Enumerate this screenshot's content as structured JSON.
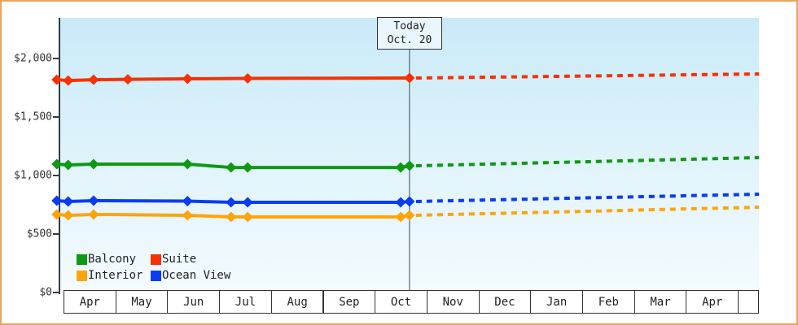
{
  "window": {
    "title": "Cruise price history chart"
  },
  "today_marker": {
    "line1": "Today",
    "line2": "Oct. 20"
  },
  "colors": {
    "frame_border": "#e8a55c",
    "axis": "#333b45",
    "today_line": "#3c4750",
    "plot_bg_top": "#c9eaf8",
    "plot_bg_bottom": "#f3fbfe",
    "balcony": "#0d9a12",
    "suite": "#f93000",
    "interior": "#ffa408",
    "ocean_view": "#0a3bf5"
  },
  "chart_data": {
    "type": "line",
    "title": "",
    "xlabel": "",
    "ylabel": "",
    "x_axis": {
      "months": [
        "Apr",
        "May",
        "Jun",
        "Jul",
        "Aug",
        "Sep",
        "Oct",
        "Nov",
        "Dec",
        "Jan",
        "Feb",
        "Mar",
        "Apr"
      ],
      "today_month_offset": 6.67,
      "axis_end_month_offset": 13.41
    },
    "y_axis": {
      "min": 0,
      "max": 2000,
      "ticks": [
        0,
        500,
        1000,
        1500,
        2000
      ],
      "tick_labels": [
        "$0",
        "$500",
        "$1,000",
        "$1,500",
        "$2,000"
      ],
      "grid": false
    },
    "legend_position": "bottom-left-inside",
    "series": [
      {
        "name": "Balcony",
        "color": "#0d9a12",
        "points_history": [
          [
            -0.13,
            1097
          ],
          [
            0.09,
            1090
          ],
          [
            0.58,
            1097
          ],
          [
            2.39,
            1097
          ],
          [
            3.23,
            1069
          ],
          [
            3.55,
            1069
          ],
          [
            6.5,
            1069
          ],
          [
            6.67,
            1083
          ]
        ],
        "points_forecast": [
          [
            6.67,
            1083
          ],
          [
            13.41,
            1153
          ]
        ]
      },
      {
        "name": "Suite",
        "color": "#f93000",
        "points_history": [
          [
            -0.13,
            1819
          ],
          [
            0.09,
            1812
          ],
          [
            0.58,
            1819
          ],
          [
            1.24,
            1822
          ],
          [
            2.39,
            1826
          ],
          [
            3.55,
            1830
          ],
          [
            6.67,
            1833
          ]
        ],
        "points_forecast": [
          [
            6.67,
            1833
          ],
          [
            13.41,
            1868
          ]
        ]
      },
      {
        "name": "Interior",
        "color": "#ffa408",
        "points_history": [
          [
            -0.13,
            667
          ],
          [
            0.09,
            660
          ],
          [
            0.58,
            667
          ],
          [
            2.39,
            660
          ],
          [
            3.23,
            646
          ],
          [
            3.55,
            646
          ],
          [
            6.5,
            646
          ],
          [
            6.67,
            660
          ]
        ],
        "points_forecast": [
          [
            6.67,
            660
          ],
          [
            13.41,
            729
          ]
        ]
      },
      {
        "name": "Ocean View",
        "color": "#0a3bf5",
        "points_history": [
          [
            -0.13,
            785
          ],
          [
            0.09,
            778
          ],
          [
            0.58,
            785
          ],
          [
            2.39,
            781
          ],
          [
            3.23,
            771
          ],
          [
            3.55,
            771
          ],
          [
            6.5,
            771
          ],
          [
            6.67,
            778
          ]
        ],
        "points_forecast": [
          [
            6.67,
            778
          ],
          [
            13.41,
            840
          ]
        ]
      }
    ]
  }
}
